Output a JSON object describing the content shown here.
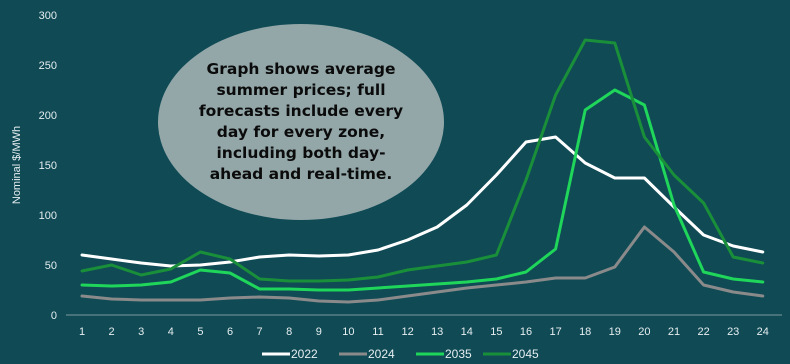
{
  "callout": {
    "text": "Graph shows average summer prices; full forecasts include every day for every zone, including both day-ahead and real-time."
  },
  "chart_data": {
    "type": "line",
    "ylabel": "Nominal $/MWh",
    "xlabel": "",
    "ylim": [
      0,
      300
    ],
    "yticks": [
      0,
      50,
      100,
      150,
      200,
      250,
      300
    ],
    "x": [
      1,
      2,
      3,
      4,
      5,
      6,
      7,
      8,
      9,
      10,
      11,
      12,
      13,
      14,
      15,
      16,
      17,
      18,
      19,
      20,
      21,
      22,
      23,
      24
    ],
    "grid": false,
    "legend_position": "bottom",
    "series": [
      {
        "name": "2022",
        "color": "#ffffff",
        "values": [
          60,
          56,
          52,
          49,
          50,
          53,
          58,
          60,
          59,
          60,
          65,
          75,
          88,
          110,
          140,
          173,
          178,
          152,
          137,
          137,
          108,
          80,
          69,
          63
        ]
      },
      {
        "name": "2024",
        "color": "#8a8a8a",
        "values": [
          19,
          16,
          15,
          15,
          15,
          17,
          18,
          17,
          14,
          13,
          15,
          19,
          23,
          27,
          30,
          33,
          37,
          37,
          48,
          88,
          63,
          30,
          23,
          19
        ]
      },
      {
        "name": "2035",
        "color": "#1fd65a",
        "values": [
          30,
          29,
          30,
          33,
          45,
          42,
          26,
          26,
          25,
          25,
          27,
          29,
          31,
          33,
          36,
          43,
          66,
          205,
          225,
          210,
          110,
          43,
          36,
          33
        ]
      },
      {
        "name": "2045",
        "color": "#1a8f3a",
        "values": [
          44,
          50,
          40,
          46,
          63,
          56,
          36,
          34,
          34,
          35,
          38,
          45,
          49,
          53,
          60,
          135,
          220,
          275,
          272,
          178,
          140,
          112,
          58,
          52
        ]
      }
    ]
  }
}
